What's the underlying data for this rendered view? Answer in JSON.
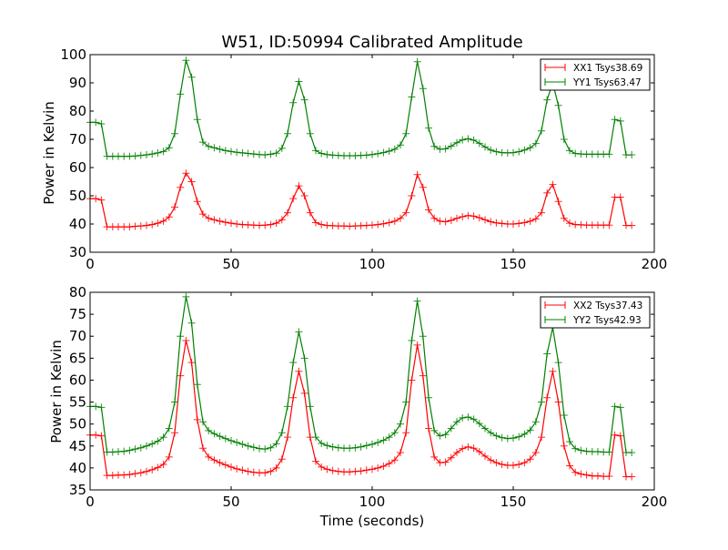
{
  "chart_data": [
    {
      "type": "line",
      "title": "W51, ID:50994 Calibrated Amplitude",
      "xlabel": "",
      "ylabel": "Power in Kelvin",
      "xlim": [
        0,
        200
      ],
      "ylim": [
        30,
        100
      ],
      "xticks": [
        0,
        50,
        100,
        150,
        200
      ],
      "yticks": [
        30,
        40,
        50,
        60,
        70,
        80,
        90,
        100
      ],
      "legend_position": "top-right",
      "x": [
        0,
        2,
        4,
        6,
        8,
        10,
        12,
        14,
        16,
        18,
        20,
        22,
        24,
        26,
        28,
        30,
        32,
        34,
        36,
        38,
        40,
        42,
        44,
        46,
        48,
        50,
        52,
        54,
        56,
        58,
        60,
        62,
        64,
        66,
        68,
        70,
        72,
        74,
        76,
        78,
        80,
        82,
        84,
        86,
        88,
        90,
        92,
        94,
        96,
        98,
        100,
        102,
        104,
        106,
        108,
        110,
        112,
        114,
        116,
        118,
        120,
        122,
        124,
        126,
        128,
        130,
        132,
        134,
        136,
        138,
        140,
        142,
        144,
        146,
        148,
        150,
        152,
        154,
        156,
        158,
        160,
        162,
        164,
        166,
        168,
        170,
        172,
        174,
        176,
        178,
        180,
        182,
        184,
        186,
        188,
        190,
        192
      ],
      "series": [
        {
          "name": "XX1 Tsys38.69",
          "color": "#ff0000",
          "values": [
            49,
            49,
            48.5,
            39,
            39,
            39,
            39,
            39,
            39.2,
            39.3,
            39.5,
            39.8,
            40.3,
            41,
            42.5,
            46,
            53,
            58,
            55,
            48,
            43.5,
            42,
            41.5,
            41,
            40.6,
            40.3,
            40,
            39.8,
            39.7,
            39.6,
            39.5,
            39.6,
            39.8,
            40.3,
            41.5,
            44,
            49,
            53.5,
            50,
            44,
            40.5,
            39.8,
            39.5,
            39.4,
            39.3,
            39.3,
            39.2,
            39.3,
            39.4,
            39.5,
            39.6,
            39.8,
            40.1,
            40.5,
            41,
            42,
            44,
            50,
            57.5,
            53,
            45,
            42,
            41,
            40.8,
            41.3,
            42,
            42.6,
            43,
            42.8,
            42.2,
            41.5,
            40.8,
            40.4,
            40.2,
            40,
            40,
            40.2,
            40.5,
            41,
            41.8,
            44,
            51,
            54,
            48,
            42,
            40.3,
            39.8,
            39.7,
            39.6,
            39.6,
            39.6,
            39.6,
            39.6,
            49.5,
            49.5,
            39.5,
            39.5
          ]
        },
        {
          "name": "YY1 Tsys63.47",
          "color": "#008000",
          "values": [
            76,
            76,
            75.5,
            64,
            64,
            64,
            64,
            64,
            64.1,
            64.3,
            64.5,
            64.8,
            65.2,
            65.7,
            67,
            72,
            86,
            98,
            92,
            77,
            69,
            67.5,
            67,
            66.5,
            66,
            65.7,
            65.4,
            65.2,
            65,
            64.8,
            64.6,
            64.5,
            64.7,
            65.1,
            66.8,
            72,
            83,
            90.5,
            84,
            72,
            66,
            65,
            64.6,
            64.4,
            64.3,
            64.2,
            64.2,
            64.2,
            64.3,
            64.4,
            64.6,
            64.9,
            65.3,
            65.8,
            66.5,
            68,
            72,
            85,
            97.5,
            88,
            74,
            67.5,
            66.5,
            66.6,
            67.6,
            68.8,
            69.8,
            70.2,
            69.7,
            68.6,
            67.3,
            66.2,
            65.6,
            65.3,
            65.2,
            65.3,
            65.6,
            66.2,
            67,
            68.5,
            73,
            84,
            90,
            82,
            70,
            66,
            65,
            64.8,
            64.7,
            64.7,
            64.7,
            64.7,
            64.7,
            77,
            76.5,
            64.5,
            64.5
          ]
        }
      ]
    },
    {
      "type": "line",
      "title": "",
      "xlabel": "Time (seconds)",
      "ylabel": "Power in Kelvin",
      "xlim": [
        0,
        200
      ],
      "ylim": [
        35,
        80
      ],
      "xticks": [
        0,
        50,
        100,
        150,
        200
      ],
      "yticks": [
        35,
        40,
        45,
        50,
        55,
        60,
        65,
        70,
        75,
        80
      ],
      "legend_position": "top-right",
      "x": [
        0,
        2,
        4,
        6,
        8,
        10,
        12,
        14,
        16,
        18,
        20,
        22,
        24,
        26,
        28,
        30,
        32,
        34,
        36,
        38,
        40,
        42,
        44,
        46,
        48,
        50,
        52,
        54,
        56,
        58,
        60,
        62,
        64,
        66,
        68,
        70,
        72,
        74,
        76,
        78,
        80,
        82,
        84,
        86,
        88,
        90,
        92,
        94,
        96,
        98,
        100,
        102,
        104,
        106,
        108,
        110,
        112,
        114,
        116,
        118,
        120,
        122,
        124,
        126,
        128,
        130,
        132,
        134,
        136,
        138,
        140,
        142,
        144,
        146,
        148,
        150,
        152,
        154,
        156,
        158,
        160,
        162,
        164,
        166,
        168,
        170,
        172,
        174,
        176,
        178,
        180,
        182,
        184,
        186,
        188,
        190,
        192
      ],
      "series": [
        {
          "name": "XX2 Tsys37.43",
          "color": "#ff0000",
          "values": [
            47.5,
            47.5,
            47.3,
            38.3,
            38.3,
            38.4,
            38.4,
            38.5,
            38.7,
            38.9,
            39.2,
            39.6,
            40.1,
            40.8,
            42.5,
            48,
            61,
            69,
            64,
            51,
            44.5,
            42.5,
            41.8,
            41.2,
            40.7,
            40.2,
            39.8,
            39.5,
            39.2,
            39,
            38.9,
            38.9,
            39.2,
            40,
            42,
            47,
            56,
            62,
            57,
            47,
            41.5,
            40.2,
            39.7,
            39.4,
            39.2,
            39.1,
            39.1,
            39.2,
            39.3,
            39.5,
            39.7,
            40,
            40.4,
            41,
            41.8,
            43.5,
            48,
            60,
            68,
            61,
            49,
            42.5,
            41.2,
            41.3,
            42.3,
            43.5,
            44.4,
            44.8,
            44.5,
            43.7,
            42.7,
            41.8,
            41.2,
            40.8,
            40.6,
            40.6,
            40.8,
            41.2,
            42,
            43.5,
            47,
            56,
            62,
            55,
            45,
            40.5,
            39,
            38.6,
            38.4,
            38.2,
            38.2,
            38.1,
            38.1,
            47.5,
            47.3,
            38,
            38
          ]
        },
        {
          "name": "YY2 Tsys42.93",
          "color": "#008000",
          "values": [
            54,
            54,
            53.8,
            43.6,
            43.6,
            43.7,
            43.8,
            44,
            44.3,
            44.6,
            45,
            45.5,
            46.1,
            47,
            49,
            55,
            70,
            79,
            73,
            59,
            50.5,
            48.5,
            47.8,
            47.2,
            46.7,
            46.2,
            45.8,
            45.4,
            45,
            44.7,
            44.4,
            44.3,
            44.6,
            45.5,
            48,
            54,
            64,
            71,
            65,
            54,
            47,
            45.6,
            45.1,
            44.8,
            44.6,
            44.5,
            44.5,
            44.6,
            44.8,
            45.1,
            45.4,
            45.8,
            46.3,
            47,
            48,
            50,
            55,
            69,
            78,
            70,
            56,
            48.5,
            47.3,
            47.6,
            49,
            50.5,
            51.4,
            51.6,
            51.1,
            50.1,
            49,
            48,
            47.3,
            46.9,
            46.7,
            46.8,
            47.1,
            47.7,
            48.6,
            50.5,
            55,
            66,
            72,
            64,
            52,
            46,
            44.4,
            44,
            43.8,
            43.7,
            43.7,
            43.6,
            43.6,
            54,
            53.8,
            43.5,
            43.5
          ]
        }
      ]
    }
  ]
}
